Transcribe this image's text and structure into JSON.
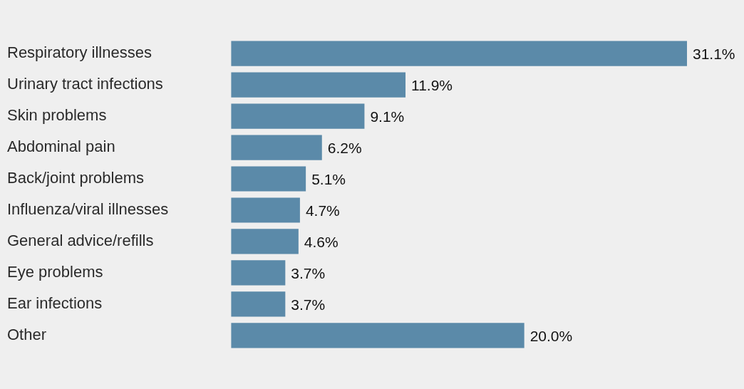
{
  "chart_data": {
    "type": "bar",
    "orientation": "horizontal",
    "categories": [
      "Respiratory illnesses",
      "Urinary tract infections",
      "Skin problems",
      "Abdominal pain",
      "Back/joint problems",
      "Influenza/viral illnesses",
      "General advice/refills",
      "Eye problems",
      "Ear infections",
      "Other"
    ],
    "values": [
      31.1,
      11.9,
      9.1,
      6.2,
      5.1,
      4.7,
      4.6,
      3.7,
      3.7,
      20.0
    ],
    "value_labels": [
      "31.1%",
      "11.9%",
      "9.1%",
      "6.2%",
      "5.1%",
      "4.7%",
      "4.6%",
      "3.7%",
      "3.7%",
      "20.0%"
    ],
    "color": "#5b8aa9",
    "legend": false
  }
}
